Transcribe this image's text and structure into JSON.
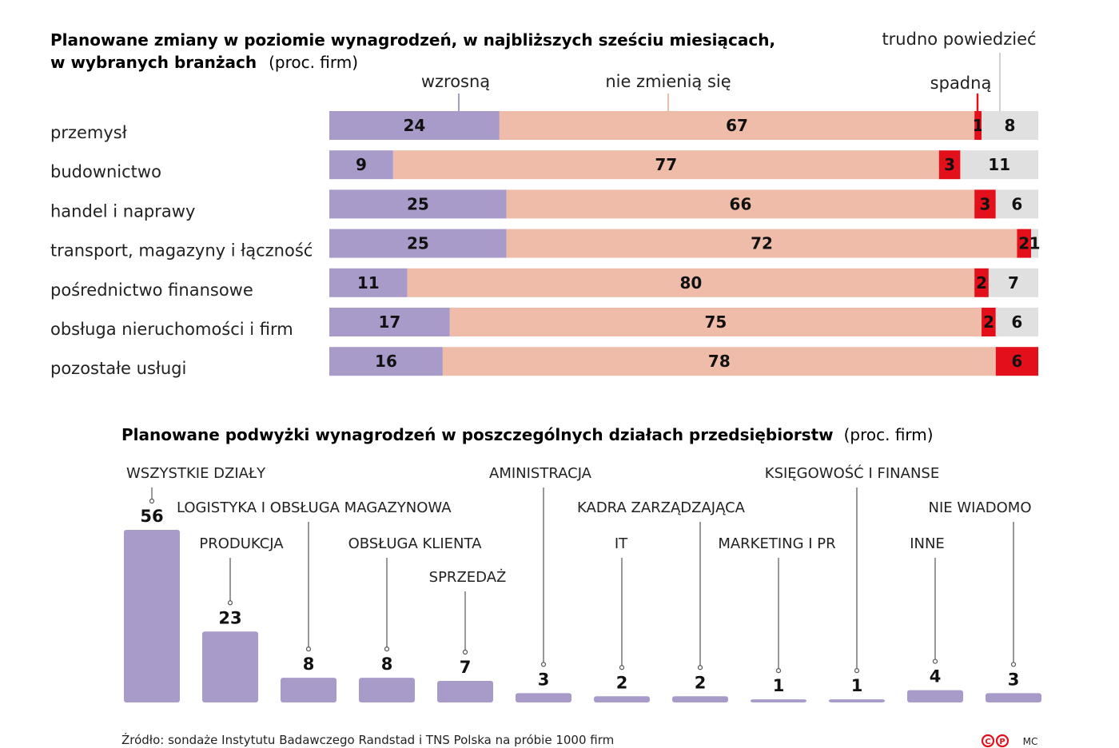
{
  "chart_data": [
    {
      "type": "bar",
      "stacked": true,
      "orientation": "horizontal",
      "title": "Planowane zmiany w poziomie wynagrodzeń, w najbliższych sześciu miesiącach,",
      "title_line2": "w wybranych branżach",
      "unit": "(proc. firm)",
      "categories": [
        "przemysł",
        "budownictwo",
        "handel i naprawy",
        "transport, magazyny i łączność",
        "pośrednictwo finansowe",
        "obsługa nieruchomości i firm",
        "pozostałe usługi"
      ],
      "series": [
        {
          "name": "wzrosną",
          "color": "#a99bc9",
          "values": [
            24,
            9,
            25,
            25,
            11,
            17,
            16
          ]
        },
        {
          "name": "nie zmienią się",
          "color": "#efbcaa",
          "values": [
            67,
            77,
            66,
            72,
            80,
            75,
            78
          ]
        },
        {
          "name": "spadną",
          "color": "#e3101b",
          "values": [
            1,
            3,
            3,
            2,
            2,
            2,
            6
          ]
        },
        {
          "name": "trudno powiedzieć",
          "color": "#e0e0e0",
          "values": [
            8,
            11,
            6,
            1,
            7,
            6,
            0
          ]
        }
      ],
      "value_labels": [
        [
          "24",
          "67",
          "1",
          "8"
        ],
        [
          "9",
          "77",
          "3",
          "11"
        ],
        [
          "25",
          "66",
          "3",
          "6"
        ],
        [
          "25",
          "72",
          "2",
          "1"
        ],
        [
          "11",
          "80",
          "2",
          "7"
        ],
        [
          "17",
          "75",
          "2",
          "6"
        ],
        [
          "16",
          "78",
          "6",
          ""
        ]
      ]
    },
    {
      "type": "bar",
      "title": "Planowane podwyżki wynagrodzeń w poszczególnych działach przedsiębiorstw",
      "unit": "(proc. firm)",
      "color": "#a99bc9",
      "categories": [
        "WSZYSTKIE DZIAŁY",
        "PRODUKCJA",
        "LOGISTYKA I OBSŁUGA MAGAZYNOWA",
        "OBSŁUGA KLIENTA",
        "SPRZEDAŻ",
        "AMINISTRACJA",
        "IT",
        "KADRA ZARZĄDZAJĄCA",
        "MARKETING I PR",
        "KSIĘGOWOŚĆ I FINANSE",
        "INNE",
        "NIE WIADOMO"
      ],
      "values": [
        56,
        23,
        8,
        8,
        7,
        3,
        2,
        2,
        1,
        1,
        4,
        3
      ]
    }
  ],
  "source": "Źródło: sondaże Instytutu Badawczego Randstad i TNS Polska na próbie 1000 firm",
  "logo": "MC"
}
